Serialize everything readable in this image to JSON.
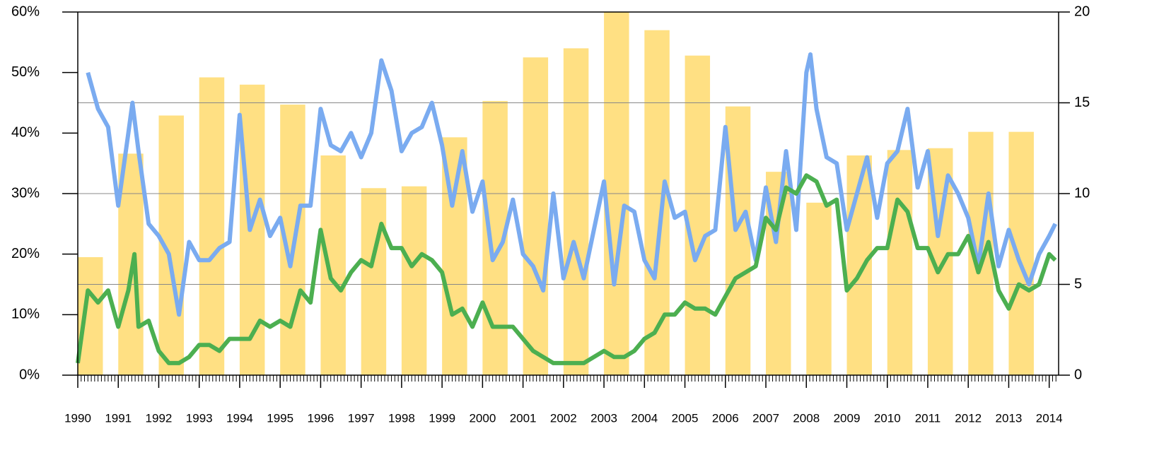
{
  "chart_data": {
    "type": "combo",
    "xlim": [
      1990,
      2014.25
    ],
    "xticks": [
      1990,
      1991,
      1992,
      1993,
      1994,
      1995,
      1996,
      1997,
      1998,
      1999,
      2000,
      2001,
      2002,
      2003,
      2004,
      2005,
      2006,
      2007,
      2008,
      2009,
      2010,
      2011,
      2012,
      2013,
      2014
    ],
    "ylim": [
      0,
      60
    ],
    "yticks": [
      {
        "value": 0,
        "label": "0%"
      },
      {
        "value": 10,
        "label": "10%"
      },
      {
        "value": 20,
        "label": "20%"
      },
      {
        "value": 30,
        "label": "30%"
      },
      {
        "value": 40,
        "label": "40%"
      },
      {
        "value": 50,
        "label": "50%"
      },
      {
        "value": 60,
        "label": "60%"
      }
    ],
    "y2lim": [
      0,
      20
    ],
    "y2ticks": [
      0,
      5,
      10,
      15,
      20
    ],
    "grid": true,
    "series": [
      {
        "type": "bar",
        "axis": "y2",
        "color": "#ffe083",
        "x": [
          1990,
          1991,
          1992,
          1993,
          1994,
          1995,
          1996,
          1997,
          1998,
          1999,
          2000,
          2001,
          2002,
          2003,
          2004,
          2005,
          2006,
          2007,
          2008,
          2009,
          2010,
          2011,
          2012,
          2013
        ],
        "values": [
          6.5,
          12.2,
          14.3,
          16.4,
          16.0,
          14.9,
          12.1,
          10.3,
          10.4,
          13.1,
          15.1,
          17.5,
          18.0,
          20.0,
          19.0,
          17.6,
          14.8,
          11.2,
          9.5,
          12.1,
          12.4,
          12.5,
          13.4,
          13.4
        ]
      },
      {
        "type": "line",
        "color": "#7aabf0",
        "x": [
          1990.25,
          1990.5,
          1990.75,
          1991.0,
          1991.25,
          1991.35,
          1991.5,
          1991.75,
          1992.0,
          1992.25,
          1992.5,
          1992.75,
          1993.0,
          1993.25,
          1993.5,
          1993.75,
          1994.0,
          1994.25,
          1994.5,
          1994.75,
          1995.0,
          1995.25,
          1995.5,
          1995.75,
          1996.0,
          1996.25,
          1996.5,
          1996.75,
          1997.0,
          1997.25,
          1997.5,
          1997.75,
          1998.0,
          1998.25,
          1998.5,
          1998.75,
          1999.0,
          1999.25,
          1999.5,
          1999.75,
          2000.0,
          2000.25,
          2000.5,
          2000.75,
          2001.0,
          2001.25,
          2001.5,
          2001.75,
          2002.0,
          2002.25,
          2002.5,
          2002.75,
          2003.0,
          2003.25,
          2003.5,
          2003.75,
          2004.0,
          2004.25,
          2004.5,
          2004.75,
          2005.0,
          2005.25,
          2005.5,
          2005.75,
          2006.0,
          2006.25,
          2006.5,
          2006.75,
          2007.0,
          2007.25,
          2007.5,
          2007.75,
          2008.0,
          2008.1,
          2008.25,
          2008.5,
          2008.75,
          2009.0,
          2009.25,
          2009.5,
          2009.75,
          2010.0,
          2010.25,
          2010.5,
          2010.75,
          2011.0,
          2011.25,
          2011.5,
          2011.75,
          2012.0,
          2012.25,
          2012.5,
          2012.75,
          2013.0,
          2013.25,
          2013.5,
          2013.75,
          2014.0,
          2014.15
        ],
        "values": [
          50,
          44,
          41,
          28,
          40,
          45,
          37,
          25,
          23,
          20,
          10,
          22,
          19,
          19,
          21,
          22,
          43,
          24,
          29,
          23,
          26,
          18,
          28,
          28,
          44,
          38,
          37,
          40,
          36,
          40,
          52,
          47,
          37,
          40,
          41,
          45,
          38,
          28,
          37,
          27,
          32,
          19,
          22,
          29,
          20,
          18,
          14,
          30,
          16,
          22,
          16,
          24,
          32,
          15,
          28,
          27,
          19,
          16,
          32,
          26,
          27,
          19,
          23,
          24,
          41,
          24,
          27,
          19,
          31,
          22,
          37,
          24,
          50,
          53,
          44,
          36,
          35,
          24,
          30,
          36,
          26,
          35,
          37,
          44,
          31,
          37,
          23,
          33,
          30,
          26,
          18,
          30,
          18,
          24,
          19,
          15,
          20,
          23,
          25
        ]
      },
      {
        "type": "line",
        "color": "#4caf50",
        "x": [
          1990.0,
          1990.25,
          1990.5,
          1990.75,
          1991.0,
          1991.25,
          1991.4,
          1991.5,
          1991.75,
          1992.0,
          1992.25,
          1992.5,
          1992.75,
          1993.0,
          1993.25,
          1993.5,
          1993.75,
          1994.0,
          1994.25,
          1994.5,
          1994.75,
          1995.0,
          1995.25,
          1995.5,
          1995.75,
          1996.0,
          1996.25,
          1996.5,
          1996.75,
          1997.0,
          1997.25,
          1997.5,
          1997.75,
          1998.0,
          1998.25,
          1998.5,
          1998.75,
          1999.0,
          1999.25,
          1999.5,
          1999.75,
          2000.0,
          2000.25,
          2000.5,
          2000.75,
          2001.0,
          2001.25,
          2001.5,
          2001.75,
          2002.0,
          2002.25,
          2002.5,
          2002.75,
          2003.0,
          2003.25,
          2003.5,
          2003.75,
          2004.0,
          2004.25,
          2004.5,
          2004.75,
          2005.0,
          2005.25,
          2005.5,
          2005.75,
          2006.0,
          2006.25,
          2006.5,
          2006.75,
          2007.0,
          2007.25,
          2007.5,
          2007.75,
          2008.0,
          2008.25,
          2008.5,
          2008.75,
          2009.0,
          2009.25,
          2009.5,
          2009.75,
          2010.0,
          2010.25,
          2010.5,
          2010.75,
          2011.0,
          2011.25,
          2011.5,
          2011.75,
          2012.0,
          2012.25,
          2012.5,
          2012.75,
          2013.0,
          2013.25,
          2013.5,
          2013.75,
          2014.0,
          2014.15
        ],
        "values": [
          2,
          14,
          12,
          14,
          8,
          14,
          20,
          8,
          9,
          4,
          2,
          2,
          3,
          5,
          5,
          4,
          6,
          6,
          6,
          9,
          8,
          9,
          8,
          14,
          12,
          24,
          16,
          14,
          17,
          19,
          18,
          25,
          21,
          21,
          18,
          20,
          19,
          17,
          10,
          11,
          8,
          12,
          8,
          8,
          8,
          6,
          4,
          3,
          2,
          2,
          2,
          2,
          3,
          4,
          3,
          3,
          4,
          6,
          7,
          10,
          10,
          12,
          11,
          11,
          10,
          13,
          16,
          17,
          18,
          26,
          24,
          31,
          30,
          33,
          32,
          28,
          29,
          14,
          16,
          19,
          21,
          21,
          29,
          27,
          21,
          21,
          17,
          20,
          20,
          23,
          17,
          22,
          14,
          11,
          15,
          14,
          15,
          20,
          19
        ]
      }
    ]
  }
}
